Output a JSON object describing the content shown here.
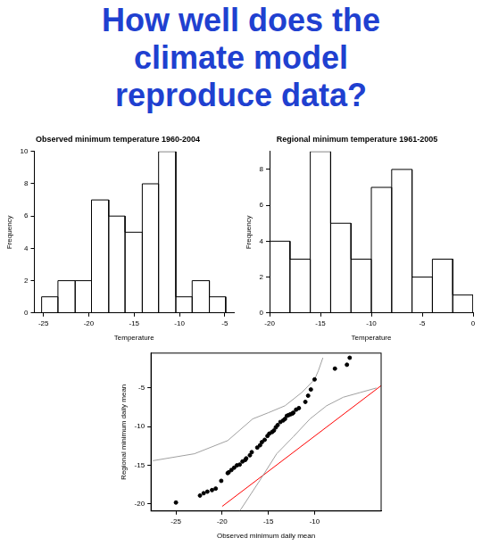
{
  "title": "How well does the climate model reproduce data?",
  "chart_data": [
    {
      "type": "histogram",
      "title": "Observed minimum temperature 1960-2004",
      "x_label": "Temperature",
      "y_label": "Frequency",
      "bins": [
        -25.2,
        -23.4,
        -21.5,
        -19.7,
        -17.8,
        -16.0,
        -14.1,
        -12.3,
        -10.4,
        -8.6,
        -6.7,
        -4.9
      ],
      "values": [
        1,
        2,
        2,
        7,
        6,
        5,
        8,
        10,
        1,
        2,
        1
      ],
      "color": "#000000",
      "xlim": [
        -26,
        -4
      ],
      "xticks": [
        -25,
        -20,
        -15,
        -10,
        -5
      ],
      "ylim": [
        0,
        10
      ],
      "yticks": [
        0,
        2,
        4,
        6,
        8,
        10
      ]
    },
    {
      "type": "histogram",
      "title": "Regional minimum temperature 1961-2005",
      "x_label": "Temperature",
      "y_label": "Frequency",
      "bins": [
        -20,
        -18,
        -16,
        -14,
        -12,
        -10,
        -8,
        -6,
        -4,
        -2,
        0
      ],
      "values": [
        4,
        3,
        9,
        5,
        3,
        7,
        8,
        2,
        3,
        1
      ],
      "color": "#000000",
      "xlim": [
        -20,
        0
      ],
      "xticks": [
        -20,
        -15,
        -10,
        -5,
        0
      ],
      "ylim": [
        0,
        9
      ],
      "yticks": [
        0,
        2,
        4,
        6,
        8
      ]
    },
    {
      "type": "scatter",
      "x_label": "Observed minimum daily mean",
      "y_label": "Regional minimum daily mean",
      "xlim": [
        -27.7,
        -2.8
      ],
      "xticks": [
        -25,
        -20,
        -15,
        -10
      ],
      "ylim": [
        -20.9,
        -0.5
      ],
      "yticks": [
        -20,
        -15,
        -10,
        -5
      ],
      "series": [
        {
          "type": "scatter",
          "color": "#000000",
          "marker": "circle",
          "x": [
            -25.0,
            -22.4,
            -22.0,
            -21.6,
            -21.1,
            -20.7,
            -20.1,
            -19.4,
            -19.3,
            -19.0,
            -18.7,
            -18.4,
            -18.1,
            -17.8,
            -17.5,
            -17.4,
            -17.0,
            -16.8,
            -16.2,
            -15.9,
            -15.7,
            -15.4,
            -15.1,
            -14.9,
            -14.6,
            -14.4,
            -14.2,
            -14.0,
            -13.7,
            -13.4,
            -13.2,
            -13.0,
            -12.8,
            -12.6,
            -12.4,
            -12.3,
            -12.0,
            -11.7,
            -11.0,
            -10.7,
            -10.4,
            -10.0,
            -7.8,
            -6.5,
            -6.2
          ],
          "values": [
            -19.8,
            -18.9,
            -18.6,
            -18.4,
            -18.2,
            -18.0,
            -17.0,
            -16.0,
            -15.9,
            -15.6,
            -15.3,
            -15.0,
            -14.9,
            -14.5,
            -14.3,
            -14.1,
            -13.7,
            -13.3,
            -12.7,
            -12.4,
            -12.0,
            -11.7,
            -11.2,
            -10.9,
            -10.7,
            -10.5,
            -10.1,
            -9.8,
            -9.4,
            -9.2,
            -9.0,
            -8.6,
            -8.5,
            -8.4,
            -8.3,
            -8.2,
            -7.8,
            -7.6,
            -6.8,
            -6.0,
            -5.2,
            -3.9,
            -2.5,
            -2.0,
            -1.1
          ]
        },
        {
          "type": "line",
          "color": "#a0a0a0",
          "line_style": "solid",
          "x": [
            -27.5,
            -23.0,
            -19.4,
            -16.7,
            -15.0,
            -13.2,
            -11.4,
            -10.0,
            -9.6,
            -9.1
          ],
          "values": [
            -14.4,
            -13.5,
            -11.8,
            -9.0,
            -8.2,
            -7.3,
            -5.6,
            -3.9,
            -2.8,
            -1.1
          ]
        },
        {
          "type": "line",
          "color": "#a0a0a0",
          "line_style": "solid",
          "x": [
            -18.1,
            -15.9,
            -14.1,
            -12.3,
            -10.5,
            -8.7,
            -6.9,
            -5.1,
            -3.3
          ],
          "values": [
            -20.9,
            -16.9,
            -13.5,
            -11.3,
            -9.0,
            -7.3,
            -6.2,
            -5.6,
            -5.0
          ]
        },
        {
          "type": "line",
          "color": "#ff0000",
          "line_style": "solid",
          "x": [
            -20.0,
            -2.8
          ],
          "values": [
            -20.3,
            -4.7
          ]
        }
      ]
    }
  ]
}
